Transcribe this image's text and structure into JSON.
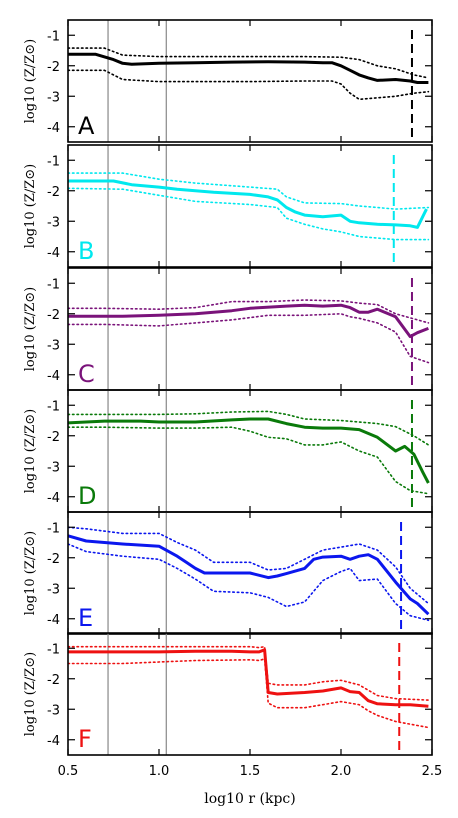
{
  "chart_data": {
    "type": "line",
    "x_axis_label": "log10 r (kpc)",
    "xlim": [
      0.5,
      2.5
    ],
    "x_ticks": [
      0.5,
      1.0,
      1.5,
      2.0,
      2.5
    ],
    "x_tick_labels": [
      "0.5",
      "1.0",
      "1.5",
      "2.0",
      "2.5"
    ],
    "y_axis_label": "log10 (Z/Z⊙)",
    "ylim": [
      -4.5,
      -0.5
    ],
    "y_ticks": [
      -1,
      -2,
      -3,
      -4
    ],
    "y_tick_labels": [
      "-1",
      "-2",
      "-3",
      "-4"
    ],
    "vertical_reference_lines": [
      0.72,
      1.04
    ],
    "panels": [
      {
        "label": "A",
        "color": "#000000",
        "dashed_marker_x": 2.39,
        "median": {
          "x": [
            0.5,
            0.65,
            0.75,
            0.8,
            0.85,
            1.0,
            1.2,
            1.4,
            1.6,
            1.8,
            1.9,
            1.95,
            2.0,
            2.05,
            2.1,
            2.15,
            2.2,
            2.3,
            2.38,
            2.42,
            2.48
          ],
          "y": [
            -1.62,
            -1.62,
            -1.8,
            -1.92,
            -1.95,
            -1.92,
            -1.9,
            -1.88,
            -1.87,
            -1.88,
            -1.9,
            -1.9,
            -2.0,
            -2.15,
            -2.3,
            -2.4,
            -2.48,
            -2.45,
            -2.5,
            -2.55,
            -2.55
          ]
        },
        "upper": {
          "x": [
            0.5,
            0.7,
            0.8,
            1.0,
            1.5,
            1.8,
            2.0,
            2.1,
            2.2,
            2.3,
            2.4,
            2.48
          ],
          "y": [
            -1.42,
            -1.42,
            -1.65,
            -1.7,
            -1.7,
            -1.7,
            -1.72,
            -1.8,
            -2.0,
            -2.1,
            -2.3,
            -2.4
          ]
        },
        "lower": {
          "x": [
            0.5,
            0.7,
            0.8,
            1.0,
            1.5,
            1.8,
            1.95,
            2.0,
            2.05,
            2.1,
            2.2,
            2.3,
            2.4,
            2.48
          ],
          "y": [
            -2.15,
            -2.15,
            -2.45,
            -2.52,
            -2.52,
            -2.5,
            -2.5,
            -2.6,
            -2.9,
            -3.1,
            -3.05,
            -3.0,
            -2.9,
            -2.85
          ]
        }
      },
      {
        "label": "B",
        "color": "#00e8ee",
        "dashed_marker_x": 2.29,
        "median": {
          "x": [
            0.5,
            0.75,
            0.85,
            1.0,
            1.1,
            1.3,
            1.5,
            1.6,
            1.65,
            1.7,
            1.75,
            1.8,
            1.9,
            2.0,
            2.05,
            2.1,
            2.2,
            2.3,
            2.38,
            2.42,
            2.47
          ],
          "y": [
            -1.68,
            -1.68,
            -1.8,
            -1.88,
            -1.95,
            -2.05,
            -2.12,
            -2.2,
            -2.3,
            -2.55,
            -2.7,
            -2.8,
            -2.85,
            -2.8,
            -3.0,
            -3.05,
            -3.1,
            -3.12,
            -3.15,
            -3.2,
            -2.6
          ]
        },
        "upper": {
          "x": [
            0.5,
            0.8,
            1.0,
            1.2,
            1.5,
            1.65,
            1.7,
            1.8,
            2.0,
            2.1,
            2.3,
            2.48
          ],
          "y": [
            -1.42,
            -1.42,
            -1.62,
            -1.75,
            -1.88,
            -1.95,
            -2.2,
            -2.4,
            -2.42,
            -2.5,
            -2.6,
            -2.55
          ]
        },
        "lower": {
          "x": [
            0.5,
            0.8,
            1.0,
            1.2,
            1.5,
            1.65,
            1.7,
            1.8,
            1.9,
            2.0,
            2.1,
            2.3,
            2.48
          ],
          "y": [
            -1.92,
            -1.95,
            -2.15,
            -2.35,
            -2.45,
            -2.55,
            -2.9,
            -3.1,
            -3.25,
            -3.35,
            -3.5,
            -3.6,
            -3.6
          ]
        }
      },
      {
        "label": "C",
        "color": "#7a137a",
        "dashed_marker_x": 2.39,
        "median": {
          "x": [
            0.5,
            0.8,
            1.0,
            1.2,
            1.4,
            1.5,
            1.7,
            1.8,
            1.9,
            2.0,
            2.05,
            2.1,
            2.15,
            2.2,
            2.3,
            2.38,
            2.42,
            2.48
          ],
          "y": [
            -2.08,
            -2.08,
            -2.05,
            -2.0,
            -1.9,
            -1.82,
            -1.75,
            -1.72,
            -1.75,
            -1.72,
            -1.8,
            -1.95,
            -1.95,
            -1.85,
            -2.1,
            -2.75,
            -2.62,
            -2.48
          ]
        },
        "upper": {
          "x": [
            0.5,
            0.7,
            1.0,
            1.2,
            1.4,
            1.6,
            1.8,
            2.0,
            2.1,
            2.2,
            2.3,
            2.48
          ],
          "y": [
            -1.82,
            -1.82,
            -1.85,
            -1.8,
            -1.6,
            -1.6,
            -1.55,
            -1.58,
            -1.65,
            -1.7,
            -2.0,
            -2.3
          ]
        },
        "lower": {
          "x": [
            0.5,
            0.7,
            1.0,
            1.2,
            1.4,
            1.6,
            1.8,
            2.0,
            2.05,
            2.1,
            2.2,
            2.3,
            2.38,
            2.48
          ],
          "y": [
            -2.35,
            -2.35,
            -2.4,
            -2.3,
            -2.2,
            -2.05,
            -2.05,
            -2.0,
            -2.1,
            -2.15,
            -2.3,
            -2.6,
            -3.4,
            -3.6
          ]
        }
      },
      {
        "label": "D",
        "color": "#0a7a0a",
        "dashed_marker_x": 2.39,
        "median": {
          "x": [
            0.5,
            0.7,
            0.9,
            1.0,
            1.2,
            1.4,
            1.5,
            1.6,
            1.7,
            1.8,
            1.9,
            2.0,
            2.1,
            2.2,
            2.3,
            2.35,
            2.4,
            2.45,
            2.48
          ],
          "y": [
            -1.58,
            -1.52,
            -1.52,
            -1.55,
            -1.55,
            -1.48,
            -1.45,
            -1.45,
            -1.6,
            -1.72,
            -1.75,
            -1.75,
            -1.8,
            -2.05,
            -2.5,
            -2.35,
            -2.6,
            -3.2,
            -3.55
          ]
        },
        "upper": {
          "x": [
            0.5,
            0.7,
            1.0,
            1.2,
            1.4,
            1.6,
            1.7,
            1.8,
            2.0,
            2.1,
            2.2,
            2.3,
            2.4,
            2.48
          ],
          "y": [
            -1.3,
            -1.3,
            -1.3,
            -1.28,
            -1.22,
            -1.2,
            -1.3,
            -1.45,
            -1.5,
            -1.55,
            -1.6,
            -1.7,
            -2.0,
            -2.3
          ]
        },
        "lower": {
          "x": [
            0.5,
            0.7,
            1.0,
            1.2,
            1.4,
            1.5,
            1.6,
            1.7,
            1.8,
            1.9,
            2.0,
            2.1,
            2.2,
            2.3,
            2.38,
            2.48
          ],
          "y": [
            -1.72,
            -1.72,
            -1.75,
            -1.75,
            -1.72,
            -1.85,
            -2.05,
            -2.1,
            -2.3,
            -2.3,
            -2.2,
            -2.5,
            -2.7,
            -3.5,
            -3.8,
            -3.9
          ]
        }
      },
      {
        "label": "E",
        "color": "#0b17ee",
        "dashed_marker_x": 2.33,
        "median": {
          "x": [
            0.5,
            0.6,
            0.8,
            1.0,
            1.1,
            1.15,
            1.2,
            1.25,
            1.3,
            1.5,
            1.6,
            1.65,
            1.7,
            1.8,
            1.85,
            1.9,
            2.0,
            2.05,
            2.1,
            2.15,
            2.2,
            2.3,
            2.38,
            2.42,
            2.48
          ],
          "y": [
            -1.28,
            -1.45,
            -1.55,
            -1.62,
            -1.95,
            -2.15,
            -2.35,
            -2.5,
            -2.5,
            -2.5,
            -2.65,
            -2.6,
            -2.52,
            -2.35,
            -2.05,
            -1.98,
            -1.95,
            -2.05,
            -1.95,
            -1.9,
            -2.05,
            -2.8,
            -3.35,
            -3.5,
            -3.85
          ]
        },
        "upper": {
          "x": [
            0.5,
            0.6,
            0.8,
            1.0,
            1.1,
            1.2,
            1.3,
            1.5,
            1.6,
            1.7,
            1.8,
            1.9,
            2.0,
            2.1,
            2.2,
            2.3,
            2.38,
            2.48
          ],
          "y": [
            -1.0,
            -1.05,
            -1.2,
            -1.2,
            -1.5,
            -1.75,
            -2.15,
            -2.15,
            -2.4,
            -2.35,
            -2.05,
            -1.75,
            -1.65,
            -1.55,
            -1.75,
            -2.3,
            -3.0,
            -3.5
          ]
        },
        "lower": {
          "x": [
            0.5,
            0.6,
            0.8,
            1.0,
            1.1,
            1.2,
            1.3,
            1.5,
            1.6,
            1.7,
            1.8,
            1.9,
            1.95,
            2.0,
            2.05,
            2.1,
            2.2,
            2.3,
            2.38,
            2.48
          ],
          "y": [
            -1.55,
            -1.8,
            -1.95,
            -2.05,
            -2.35,
            -2.7,
            -3.1,
            -3.15,
            -3.3,
            -3.6,
            -3.45,
            -2.75,
            -2.6,
            -2.45,
            -2.35,
            -2.75,
            -2.7,
            -3.5,
            -3.9,
            -4.05
          ]
        }
      },
      {
        "label": "F",
        "color": "#ee1111",
        "dashed_marker_x": 2.32,
        "median": {
          "x": [
            0.5,
            0.8,
            1.0,
            1.2,
            1.4,
            1.5,
            1.55,
            1.58,
            1.6,
            1.65,
            1.8,
            1.9,
            2.0,
            2.05,
            2.1,
            2.15,
            2.2,
            2.3,
            2.38,
            2.48
          ],
          "y": [
            -1.12,
            -1.12,
            -1.12,
            -1.1,
            -1.1,
            -1.12,
            -1.12,
            -1.05,
            -2.45,
            -2.5,
            -2.45,
            -2.4,
            -2.3,
            -2.42,
            -2.45,
            -2.72,
            -2.82,
            -2.85,
            -2.85,
            -2.9
          ]
        },
        "upper": {
          "x": [
            0.5,
            0.8,
            1.0,
            1.2,
            1.5,
            1.55,
            1.58,
            1.6,
            1.65,
            1.8,
            1.9,
            2.0,
            2.1,
            2.2,
            2.3,
            2.48
          ],
          "y": [
            -0.95,
            -0.95,
            -0.95,
            -0.95,
            -0.95,
            -0.98,
            -0.95,
            -2.15,
            -2.2,
            -2.2,
            -2.1,
            -2.05,
            -2.2,
            -2.55,
            -2.65,
            -2.7
          ]
        },
        "lower": {
          "x": [
            0.5,
            0.8,
            1.0,
            1.2,
            1.5,
            1.55,
            1.58,
            1.6,
            1.65,
            1.8,
            1.9,
            2.0,
            2.1,
            2.15,
            2.2,
            2.3,
            2.48
          ],
          "y": [
            -1.5,
            -1.5,
            -1.45,
            -1.4,
            -1.38,
            -1.4,
            -1.35,
            -2.8,
            -2.95,
            -2.95,
            -2.85,
            -2.75,
            -2.85,
            -3.05,
            -3.2,
            -3.4,
            -3.6
          ]
        }
      }
    ]
  }
}
